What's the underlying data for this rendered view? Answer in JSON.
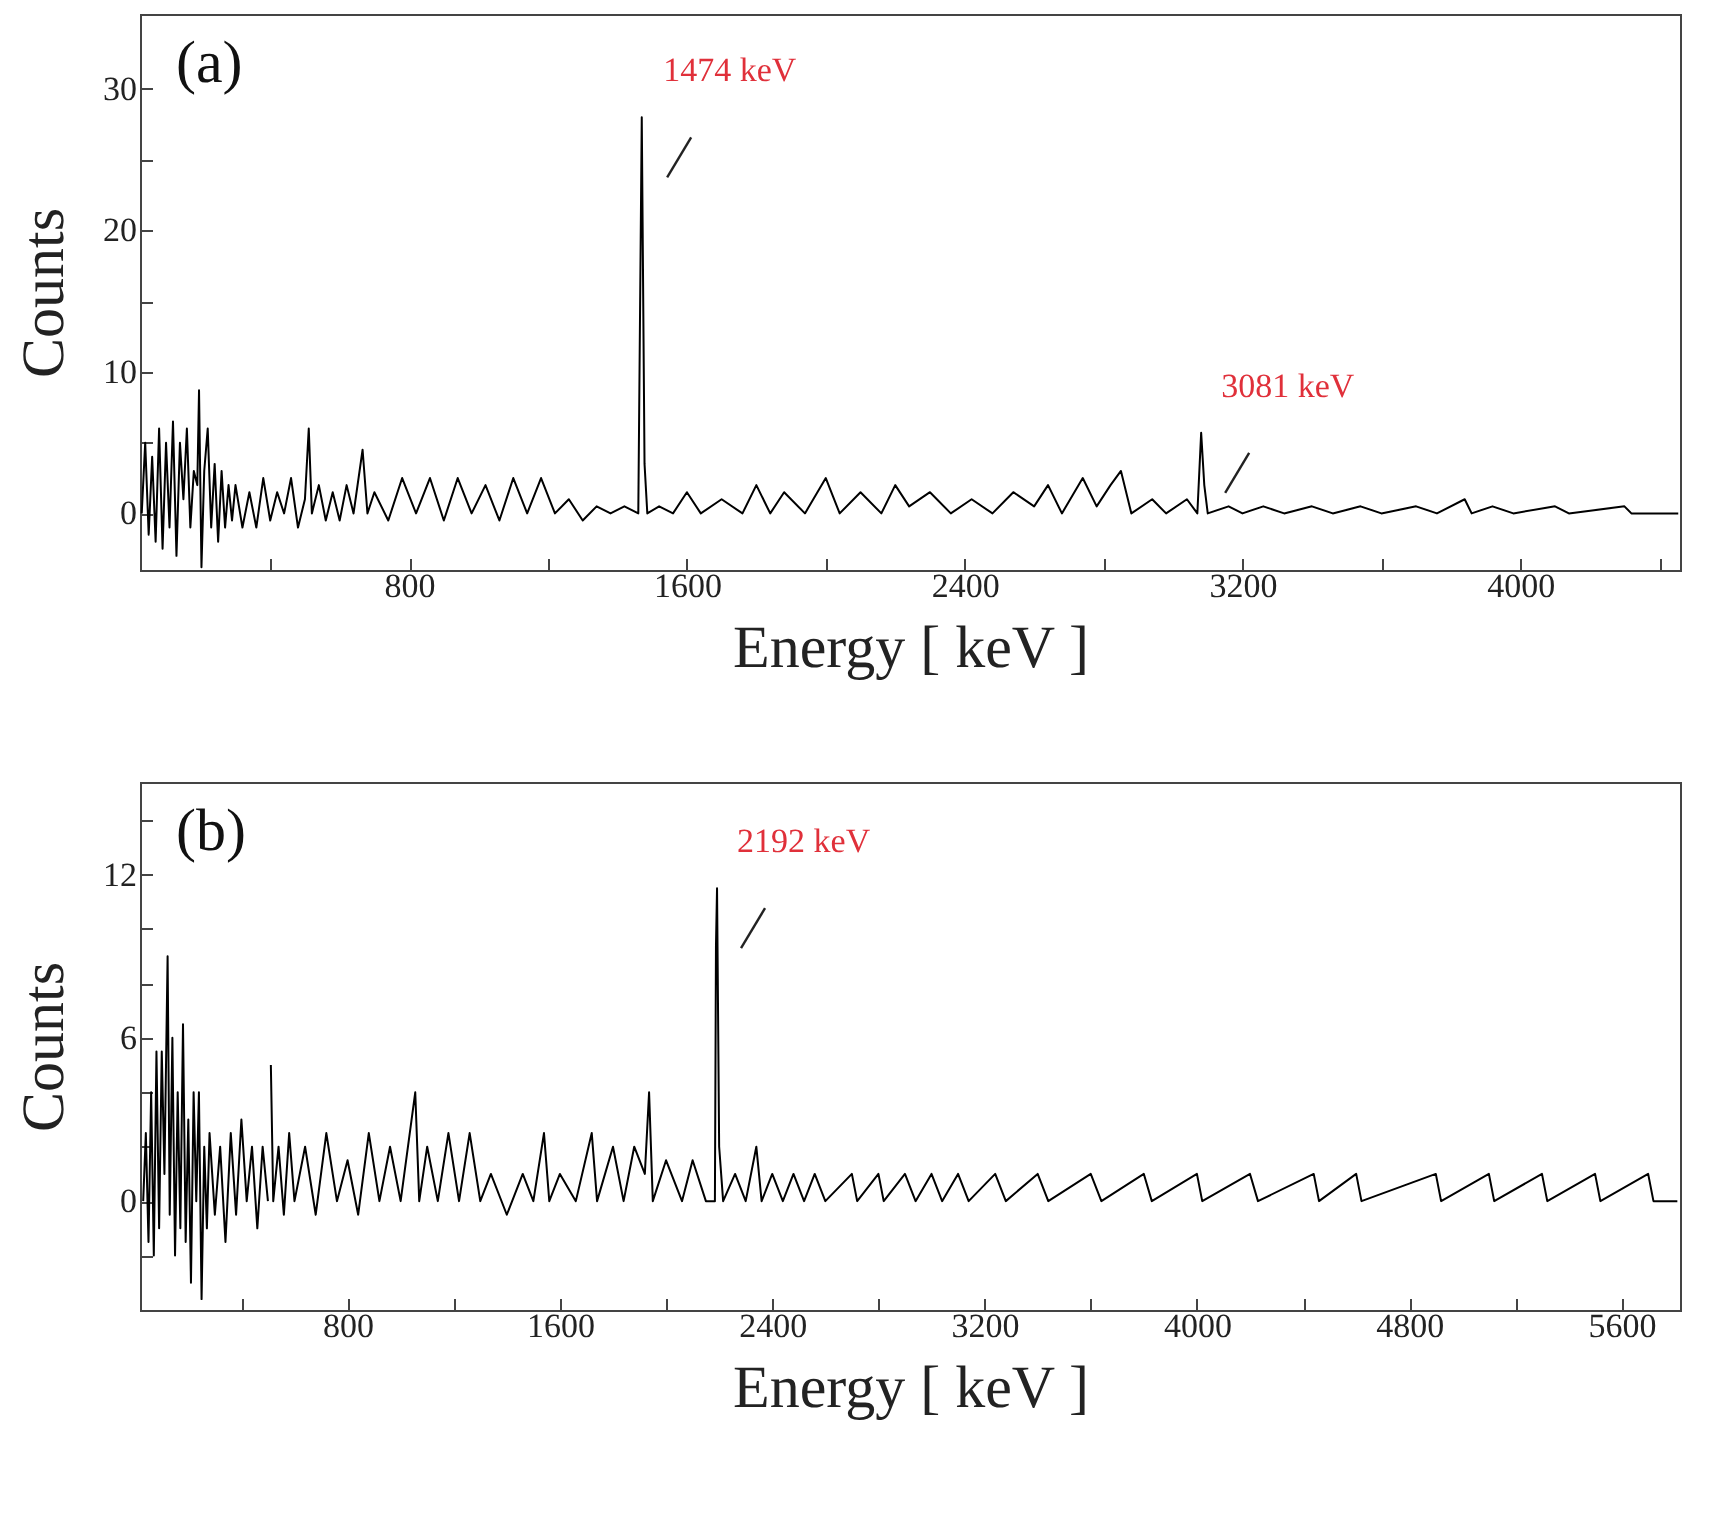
{
  "chart_data": [
    {
      "type": "line",
      "xlabel": "Energy [ keV ]",
      "ylabel": "Counts",
      "xlim": [
        25,
        4460
      ],
      "ylim": [
        -4,
        35.3
      ],
      "xticks": [
        {
          "value": 400,
          "label": null
        },
        800,
        {
          "value": 1200,
          "label": null
        },
        1600,
        {
          "value": 2000,
          "label": null
        },
        2400,
        {
          "value": 2800,
          "label": null
        },
        3200,
        {
          "value": 3600,
          "label": null
        },
        4000,
        {
          "value": 4400,
          "label": null
        }
      ],
      "yticks": [
        0,
        {
          "value": 5,
          "label": null
        },
        10,
        {
          "value": 15,
          "label": null
        },
        20,
        {
          "value": 25,
          "label": null
        },
        30
      ],
      "grid": false,
      "marker": "none",
      "line_style": "solid",
      "annotations": [
        "(a)",
        {
          "text": "1474 keV",
          "x": 1474,
          "y": 28
        },
        {
          "text": "3081 keV",
          "x": 3081,
          "y": 5.7
        }
      ],
      "series": [
        {
          "color": "#000000",
          "x": [
            30,
            40,
            50,
            60,
            70,
            80,
            90,
            100,
            110,
            120,
            130,
            140,
            150,
            160,
            170,
            180,
            190,
            195,
            202,
            210,
            220,
            230,
            240,
            250,
            260,
            270,
            280,
            290,
            300,
            320,
            340,
            360,
            380,
            400,
            420,
            440,
            460,
            480,
            500,
            511,
            520,
            540,
            560,
            580,
            600,
            620,
            640,
            666,
            680,
            700,
            740,
            780,
            820,
            860,
            900,
            940,
            980,
            1020,
            1060,
            1100,
            1140,
            1180,
            1220,
            1260,
            1300,
            1340,
            1380,
            1420,
            1460,
            1470,
            1478,
            1486,
            1520,
            1560,
            1600,
            1640,
            1700,
            1760,
            1800,
            1840,
            1880,
            1940,
            2000,
            2040,
            2100,
            2160,
            2200,
            2240,
            2300,
            2360,
            2420,
            2480,
            2540,
            2600,
            2640,
            2680,
            2740,
            2780,
            2820,
            2850,
            2880,
            2940,
            2980,
            3040,
            3070,
            3081,
            3090,
            3100,
            3160,
            3200,
            3260,
            3320,
            3400,
            3460,
            3540,
            3600,
            3700,
            3760,
            3840,
            3860,
            3920,
            3980,
            4100,
            4140,
            4300,
            4320,
            4455
          ],
          "values": [
            0,
            5,
            -1.5,
            4,
            -2,
            6,
            -2.5,
            5,
            -1,
            6.5,
            -3,
            5,
            1,
            6,
            -1,
            3,
            2,
            8.7,
            -3.8,
            3,
            6,
            -1,
            3.5,
            -2,
            3,
            -1,
            2,
            -0.5,
            2,
            -1,
            1.5,
            -1,
            2.5,
            -0.5,
            1.5,
            0,
            2.5,
            -1,
            1,
            6,
            0,
            2,
            -0.5,
            1.5,
            -0.5,
            2,
            0,
            4.5,
            0,
            1.5,
            -0.5,
            2.5,
            0,
            2.5,
            -0.5,
            2.5,
            0,
            2,
            -0.5,
            2.5,
            0,
            2.5,
            0,
            1,
            -0.5,
            0.5,
            0,
            0.5,
            0,
            28,
            3.5,
            0,
            0.5,
            0,
            1.5,
            0,
            1,
            0,
            2,
            0,
            1.5,
            0,
            2.5,
            0,
            1.5,
            0,
            2,
            0.5,
            1.5,
            0,
            1,
            0,
            1.5,
            0.5,
            2,
            0,
            2.5,
            0.5,
            2,
            3,
            0,
            1,
            0,
            1,
            0,
            5.7,
            2,
            0,
            0.5,
            0,
            0.5,
            0,
            0.5,
            0,
            0.5,
            0,
            0.5,
            0,
            1,
            0,
            0.5,
            0,
            0.5,
            0,
            0.5,
            0,
            0
          ]
        }
      ]
    },
    {
      "type": "line",
      "xlabel": "Energy [ keV ]",
      "ylabel": "Counts",
      "xlim": [
        18,
        5820
      ],
      "ylim": [
        -4,
        15.4
      ],
      "xticks": [
        {
          "value": 400,
          "label": null
        },
        800,
        {
          "value": 1200,
          "label": null
        },
        1600,
        {
          "value": 2000,
          "label": null
        },
        2400,
        {
          "value": 2800,
          "label": null
        },
        3200,
        {
          "value": 3600,
          "label": null
        },
        4000,
        {
          "value": 4400,
          "label": null
        },
        4800,
        {
          "value": 5200,
          "label": null
        },
        5600
      ],
      "yticks": [
        {
          "value": -2,
          "label": null
        },
        0,
        {
          "value": 2,
          "label": null
        },
        {
          "value": 4,
          "label": null
        },
        6,
        {
          "value": 8,
          "label": null
        },
        {
          "value": 10,
          "label": null
        },
        12,
        {
          "value": 14,
          "label": null
        }
      ],
      "grid": false,
      "marker": "none",
      "line_style": "solid",
      "annotations": [
        "(b)",
        {
          "text": "2192 keV",
          "x": 2192,
          "y": 11.5
        }
      ],
      "series": [
        {
          "color": "#000000",
          "x": [
            30,
            40,
            50,
            60,
            70,
            80,
            90,
            100,
            110,
            122,
            130,
            140,
            150,
            160,
            170,
            180,
            190,
            200,
            210,
            220,
            230,
            240,
            250,
            260,
            270,
            280,
            300,
            320,
            340,
            360,
            380,
            400,
            420,
            440,
            460,
            480,
            500,
            509,
            511,
            520,
            540,
            560,
            580,
            600,
            640,
            680,
            720,
            760,
            800,
            840,
            880,
            920,
            960,
            1000,
            1055,
            1070,
            1100,
            1140,
            1180,
            1220,
            1260,
            1300,
            1340,
            1400,
            1460,
            1500,
            1540,
            1560,
            1600,
            1660,
            1720,
            1740,
            1800,
            1840,
            1880,
            1920,
            1936,
            1950,
            2000,
            2060,
            2100,
            2150,
            2184,
            2188,
            2192,
            2200,
            2215,
            2260,
            2300,
            2340,
            2360,
            2400,
            2440,
            2480,
            2520,
            2560,
            2600,
            2700,
            2720,
            2800,
            2820,
            2900,
            2940,
            3000,
            3040,
            3100,
            3140,
            3240,
            3280,
            3400,
            3440,
            3600,
            3640,
            3800,
            3830,
            4000,
            4020,
            4200,
            4230,
            4440,
            4460,
            4600,
            4620,
            4900,
            4920,
            5100,
            5120,
            5300,
            5320,
            5500,
            5520,
            5700,
            5720,
            5810
          ],
          "values": [
            0,
            2.5,
            -1.5,
            4,
            -2,
            5.5,
            -1,
            5.5,
            1,
            9,
            -0.5,
            6,
            -2,
            4,
            -1,
            6.5,
            -1.5,
            3,
            -3,
            4,
            0,
            4,
            -3.6,
            2,
            -1,
            2.5,
            -0.5,
            2,
            -1.5,
            2.5,
            -0.5,
            3,
            0,
            2,
            -1,
            2,
            0,
            null,
            5,
            0,
            2,
            -0.5,
            2.5,
            0,
            2,
            -0.5,
            2.5,
            0,
            1.5,
            -0.5,
            2.5,
            0,
            2,
            0,
            4,
            0,
            2,
            0,
            2.5,
            0,
            2.5,
            0,
            1,
            -0.5,
            1,
            0,
            2.5,
            0,
            1,
            0,
            2.5,
            0,
            2,
            0,
            2,
            1,
            4,
            0,
            1.5,
            0,
            1.5,
            0,
            0,
            9.4,
            11.5,
            2,
            0,
            1,
            0,
            2,
            0,
            1,
            0,
            1,
            0,
            1,
            0,
            1,
            0,
            1,
            0,
            1,
            0,
            1,
            0,
            1,
            0,
            1,
            0,
            1,
            0,
            1,
            0,
            1,
            0,
            1,
            0,
            1,
            0,
            1,
            0,
            1,
            0,
            1,
            0,
            1,
            0,
            1,
            0,
            1,
            0,
            1,
            0,
            0
          ]
        }
      ]
    }
  ]
}
